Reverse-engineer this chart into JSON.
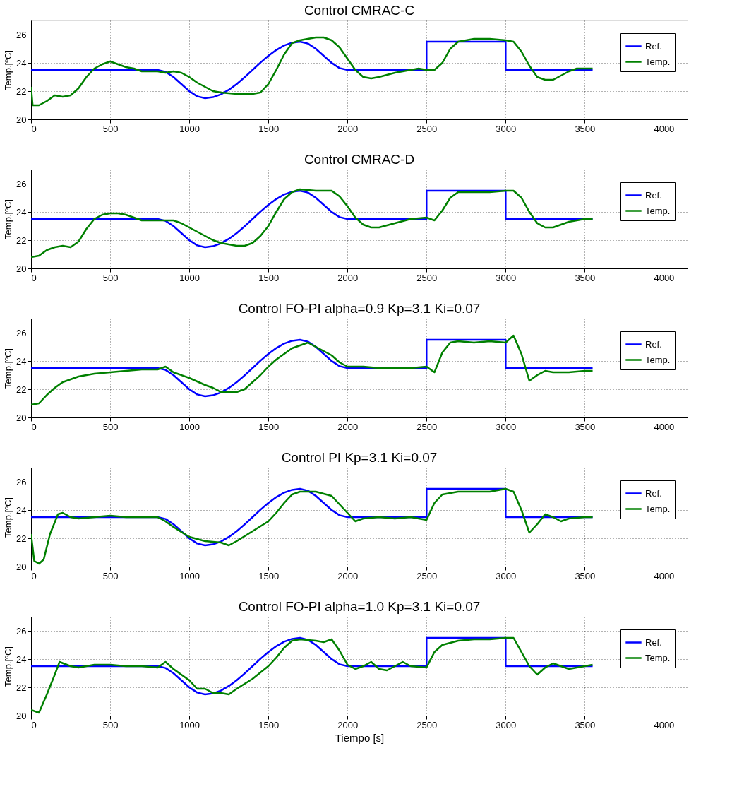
{
  "chart_data": [
    {
      "type": "line",
      "title": "Control CMRAC-C",
      "ylabel": "Temp.[ºC]",
      "xlim": [
        0,
        4150
      ],
      "ylim": [
        20,
        27
      ],
      "xticks": [
        0,
        500,
        1000,
        1500,
        2000,
        2500,
        3000,
        3500,
        4000
      ],
      "yticks": [
        20,
        22,
        24,
        26
      ],
      "grid": true,
      "legend": "top right",
      "series": [
        {
          "name": "Ref.",
          "color": "#0000ff",
          "x": [
            0,
            800,
            850,
            900,
            950,
            1000,
            1050,
            1100,
            1150,
            1200,
            1250,
            1300,
            1350,
            1400,
            1450,
            1500,
            1550,
            1600,
            1650,
            1700,
            1750,
            1800,
            1850,
            1900,
            1950,
            2000,
            2500,
            2500,
            3000,
            3000,
            3550
          ],
          "values": [
            23.5,
            23.5,
            23.37,
            23.0,
            22.5,
            22.0,
            21.63,
            21.5,
            21.57,
            21.77,
            22.09,
            22.5,
            22.98,
            23.5,
            24.02,
            24.5,
            24.91,
            25.23,
            25.43,
            25.5,
            25.37,
            25.0,
            24.5,
            24.0,
            23.63,
            23.5,
            23.5,
            25.5,
            25.5,
            23.5,
            23.5
          ]
        },
        {
          "name": "Temp.",
          "color": "#008000",
          "x": [
            0,
            10,
            50,
            100,
            150,
            200,
            250,
            300,
            350,
            400,
            450,
            500,
            550,
            600,
            650,
            700,
            750,
            800,
            850,
            900,
            950,
            1000,
            1050,
            1100,
            1150,
            1200,
            1300,
            1400,
            1450,
            1500,
            1550,
            1600,
            1650,
            1700,
            1750,
            1800,
            1850,
            1900,
            1950,
            2000,
            2050,
            2100,
            2150,
            2200,
            2300,
            2400,
            2450,
            2500,
            2550,
            2600,
            2650,
            2700,
            2800,
            2900,
            3000,
            3050,
            3100,
            3150,
            3200,
            3250,
            3300,
            3350,
            3400,
            3450,
            3500,
            3550
          ],
          "values": [
            22.3,
            21.0,
            21.0,
            21.3,
            21.7,
            21.6,
            21.7,
            22.2,
            23.0,
            23.6,
            23.9,
            24.1,
            23.9,
            23.7,
            23.6,
            23.4,
            23.4,
            23.4,
            23.3,
            23.4,
            23.3,
            23.0,
            22.6,
            22.3,
            22.0,
            21.9,
            21.8,
            21.8,
            21.9,
            22.5,
            23.5,
            24.6,
            25.4,
            25.6,
            25.7,
            25.8,
            25.8,
            25.6,
            25.1,
            24.3,
            23.5,
            23.0,
            22.9,
            23.0,
            23.3,
            23.5,
            23.6,
            23.5,
            23.5,
            24.0,
            25.0,
            25.5,
            25.7,
            25.7,
            25.6,
            25.5,
            24.8,
            23.8,
            23.0,
            22.8,
            22.8,
            23.1,
            23.4,
            23.6,
            23.6,
            23.6
          ]
        }
      ]
    },
    {
      "type": "line",
      "title": "Control CMRAC-D",
      "ylabel": "Temp.[ºC]",
      "xlim": [
        0,
        4150
      ],
      "ylim": [
        20,
        27
      ],
      "xticks": [
        0,
        500,
        1000,
        1500,
        2000,
        2500,
        3000,
        3500,
        4000
      ],
      "yticks": [
        20,
        22,
        24,
        26
      ],
      "grid": true,
      "legend": "top right",
      "series": [
        {
          "name": "Ref.",
          "color": "#0000ff",
          "x": [
            0,
            800,
            850,
            900,
            950,
            1000,
            1050,
            1100,
            1150,
            1200,
            1250,
            1300,
            1350,
            1400,
            1450,
            1500,
            1550,
            1600,
            1650,
            1700,
            1750,
            1800,
            1850,
            1900,
            1950,
            2000,
            2500,
            2500,
            3000,
            3000,
            3550
          ],
          "values": [
            23.5,
            23.5,
            23.37,
            23.0,
            22.5,
            22.0,
            21.63,
            21.5,
            21.57,
            21.77,
            22.09,
            22.5,
            22.98,
            23.5,
            24.02,
            24.5,
            24.91,
            25.23,
            25.43,
            25.5,
            25.37,
            25.0,
            24.5,
            24.0,
            23.63,
            23.5,
            23.5,
            25.5,
            25.5,
            23.5,
            23.5
          ]
        },
        {
          "name": "Temp.",
          "color": "#008000",
          "x": [
            0,
            50,
            100,
            150,
            200,
            250,
            300,
            350,
            400,
            450,
            500,
            550,
            600,
            650,
            700,
            800,
            850,
            900,
            950,
            1000,
            1050,
            1100,
            1150,
            1200,
            1250,
            1300,
            1350,
            1400,
            1450,
            1500,
            1550,
            1600,
            1650,
            1700,
            1800,
            1900,
            1950,
            2000,
            2050,
            2100,
            2150,
            2200,
            2300,
            2400,
            2500,
            2550,
            2600,
            2650,
            2700,
            2800,
            2900,
            3000,
            3050,
            3100,
            3150,
            3200,
            3250,
            3300,
            3400,
            3500,
            3550
          ],
          "values": [
            20.8,
            20.9,
            21.3,
            21.5,
            21.6,
            21.5,
            21.9,
            22.8,
            23.5,
            23.8,
            23.9,
            23.9,
            23.8,
            23.6,
            23.4,
            23.4,
            23.4,
            23.4,
            23.2,
            22.9,
            22.6,
            22.3,
            22.0,
            21.8,
            21.7,
            21.6,
            21.6,
            21.8,
            22.3,
            23.0,
            24.0,
            24.9,
            25.4,
            25.6,
            25.5,
            25.5,
            25.1,
            24.4,
            23.6,
            23.1,
            22.9,
            22.9,
            23.2,
            23.5,
            23.6,
            23.4,
            24.1,
            25.0,
            25.4,
            25.4,
            25.4,
            25.5,
            25.5,
            25.0,
            24.0,
            23.2,
            22.9,
            22.9,
            23.3,
            23.5,
            23.5
          ]
        }
      ]
    },
    {
      "type": "line",
      "title": "Control FO-PI alpha=0.9 Kp=3.1  Ki=0.07",
      "ylabel": "Temp.[ºC]",
      "xlim": [
        0,
        4150
      ],
      "ylim": [
        20,
        27
      ],
      "xticks": [
        0,
        500,
        1000,
        1500,
        2000,
        2500,
        3000,
        3500,
        4000
      ],
      "yticks": [
        20,
        22,
        24,
        26
      ],
      "grid": true,
      "legend": "top right",
      "series": [
        {
          "name": "Ref.",
          "color": "#0000ff",
          "x": [
            0,
            800,
            850,
            900,
            950,
            1000,
            1050,
            1100,
            1150,
            1200,
            1250,
            1300,
            1350,
            1400,
            1450,
            1500,
            1550,
            1600,
            1650,
            1700,
            1750,
            1800,
            1850,
            1900,
            1950,
            2000,
            2500,
            2500,
            3000,
            3000,
            3550
          ],
          "values": [
            23.5,
            23.5,
            23.37,
            23.0,
            22.5,
            22.0,
            21.63,
            21.5,
            21.57,
            21.77,
            22.09,
            22.5,
            22.98,
            23.5,
            24.02,
            24.5,
            24.91,
            25.23,
            25.43,
            25.5,
            25.37,
            25.0,
            24.5,
            24.0,
            23.63,
            23.5,
            23.5,
            25.5,
            25.5,
            23.5,
            23.5
          ]
        },
        {
          "name": "Temp.",
          "color": "#008000",
          "x": [
            0,
            50,
            100,
            150,
            200,
            300,
            400,
            500,
            600,
            700,
            800,
            850,
            900,
            1000,
            1100,
            1150,
            1200,
            1300,
            1350,
            1400,
            1450,
            1500,
            1550,
            1600,
            1650,
            1700,
            1750,
            1800,
            1850,
            1900,
            1950,
            2000,
            2100,
            2200,
            2300,
            2400,
            2500,
            2550,
            2600,
            2650,
            2700,
            2800,
            2900,
            3000,
            3050,
            3100,
            3150,
            3200,
            3250,
            3300,
            3400,
            3500,
            3550
          ],
          "values": [
            20.9,
            21.0,
            21.6,
            22.1,
            22.5,
            22.9,
            23.1,
            23.2,
            23.3,
            23.4,
            23.4,
            23.6,
            23.2,
            22.8,
            22.3,
            22.1,
            21.8,
            21.8,
            22.0,
            22.5,
            23.0,
            23.6,
            24.1,
            24.5,
            24.9,
            25.1,
            25.3,
            25.0,
            24.7,
            24.4,
            23.9,
            23.6,
            23.6,
            23.5,
            23.5,
            23.5,
            23.6,
            23.2,
            24.6,
            25.3,
            25.4,
            25.3,
            25.4,
            25.3,
            25.8,
            24.5,
            22.6,
            23.0,
            23.3,
            23.2,
            23.2,
            23.3,
            23.3
          ]
        }
      ]
    },
    {
      "type": "line",
      "title": "Control PI Kp=3.1  Ki=0.07",
      "ylabel": "Temp.[ºC]",
      "xlim": [
        0,
        4150
      ],
      "ylim": [
        20,
        27
      ],
      "xticks": [
        0,
        500,
        1000,
        1500,
        2000,
        2500,
        3000,
        3500,
        4000
      ],
      "yticks": [
        20,
        22,
        24,
        26
      ],
      "grid": true,
      "legend": "top right",
      "series": [
        {
          "name": "Ref.",
          "color": "#0000ff",
          "x": [
            0,
            800,
            850,
            900,
            950,
            1000,
            1050,
            1100,
            1150,
            1200,
            1250,
            1300,
            1350,
            1400,
            1450,
            1500,
            1550,
            1600,
            1650,
            1700,
            1750,
            1800,
            1850,
            1900,
            1950,
            2000,
            2500,
            2500,
            3000,
            3000,
            3550
          ],
          "values": [
            23.5,
            23.5,
            23.37,
            23.0,
            22.5,
            22.0,
            21.63,
            21.5,
            21.57,
            21.77,
            22.09,
            22.5,
            22.98,
            23.5,
            24.02,
            24.5,
            24.91,
            25.23,
            25.43,
            25.5,
            25.37,
            25.0,
            24.5,
            24.0,
            23.63,
            23.5,
            23.5,
            25.5,
            25.5,
            23.5,
            23.5
          ]
        },
        {
          "name": "Temp.",
          "color": "#008000",
          "x": [
            0,
            20,
            50,
            80,
            120,
            170,
            200,
            250,
            300,
            400,
            500,
            600,
            700,
            800,
            850,
            900,
            1000,
            1100,
            1200,
            1250,
            1300,
            1400,
            1500,
            1550,
            1600,
            1650,
            1700,
            1800,
            1900,
            1950,
            2000,
            2050,
            2100,
            2200,
            2300,
            2400,
            2500,
            2550,
            2600,
            2700,
            2800,
            2900,
            3000,
            3050,
            3100,
            3150,
            3200,
            3250,
            3300,
            3350,
            3400,
            3500,
            3550
          ],
          "values": [
            22.3,
            20.4,
            20.2,
            20.5,
            22.3,
            23.7,
            23.8,
            23.5,
            23.4,
            23.5,
            23.6,
            23.5,
            23.5,
            23.5,
            23.2,
            22.8,
            22.1,
            21.8,
            21.7,
            21.5,
            21.8,
            22.5,
            23.2,
            23.8,
            24.5,
            25.1,
            25.3,
            25.3,
            25.0,
            24.4,
            23.8,
            23.2,
            23.4,
            23.5,
            23.4,
            23.5,
            23.3,
            24.5,
            25.1,
            25.3,
            25.3,
            25.3,
            25.5,
            25.3,
            24.0,
            22.4,
            23.0,
            23.7,
            23.5,
            23.2,
            23.4,
            23.5,
            23.5
          ]
        }
      ]
    },
    {
      "type": "line",
      "title": "Control FO-PI alpha=1.0 Kp=3.1  Ki=0.07",
      "xlabel": "Tiempo [s]",
      "ylabel": "Temp.[ºC]",
      "xlim": [
        0,
        4150
      ],
      "ylim": [
        20,
        27
      ],
      "xticks": [
        0,
        500,
        1000,
        1500,
        2000,
        2500,
        3000,
        3500,
        4000
      ],
      "yticks": [
        20,
        22,
        24,
        26
      ],
      "grid": true,
      "legend": "top right",
      "series": [
        {
          "name": "Ref.",
          "color": "#0000ff",
          "x": [
            0,
            800,
            850,
            900,
            950,
            1000,
            1050,
            1100,
            1150,
            1200,
            1250,
            1300,
            1350,
            1400,
            1450,
            1500,
            1550,
            1600,
            1650,
            1700,
            1750,
            1800,
            1850,
            1900,
            1950,
            2000,
            2500,
            2500,
            3000,
            3000,
            3550
          ],
          "values": [
            23.5,
            23.5,
            23.37,
            23.0,
            22.5,
            22.0,
            21.63,
            21.5,
            21.57,
            21.77,
            22.09,
            22.5,
            22.98,
            23.5,
            24.02,
            24.5,
            24.91,
            25.23,
            25.43,
            25.5,
            25.37,
            25.0,
            24.5,
            24.0,
            23.63,
            23.5,
            23.5,
            25.5,
            25.5,
            23.5,
            23.5
          ]
        },
        {
          "name": "Temp.",
          "color": "#008000",
          "x": [
            0,
            50,
            100,
            150,
            180,
            250,
            300,
            400,
            500,
            600,
            700,
            800,
            850,
            900,
            1000,
            1050,
            1100,
            1150,
            1200,
            1250,
            1300,
            1400,
            1500,
            1550,
            1600,
            1650,
            1700,
            1800,
            1850,
            1900,
            1950,
            2000,
            2050,
            2100,
            2150,
            2200,
            2250,
            2300,
            2350,
            2400,
            2500,
            2550,
            2600,
            2700,
            2800,
            2900,
            3000,
            3050,
            3100,
            3150,
            3200,
            3250,
            3300,
            3400,
            3500,
            3550
          ],
          "values": [
            20.4,
            20.2,
            21.5,
            22.9,
            23.8,
            23.5,
            23.4,
            23.6,
            23.6,
            23.5,
            23.5,
            23.4,
            23.8,
            23.3,
            22.5,
            21.9,
            21.9,
            21.6,
            21.6,
            21.5,
            21.9,
            22.6,
            23.5,
            24.1,
            24.8,
            25.3,
            25.4,
            25.3,
            25.2,
            25.4,
            24.6,
            23.6,
            23.3,
            23.5,
            23.8,
            23.3,
            23.2,
            23.5,
            23.8,
            23.5,
            23.4,
            24.5,
            25.0,
            25.3,
            25.4,
            25.4,
            25.5,
            25.5,
            24.5,
            23.5,
            22.9,
            23.4,
            23.7,
            23.3,
            23.5,
            23.6
          ]
        }
      ]
    }
  ]
}
